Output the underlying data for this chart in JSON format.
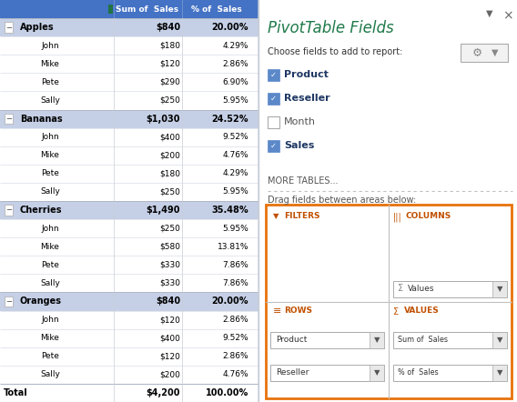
{
  "pivot_header_bg": "#4472C4",
  "pivot_header_text": "#FFFFFF",
  "pivot_header_cols": [
    "Sum of  Sales",
    "% of  Sales"
  ],
  "group_bg": "#C5D0E6",
  "border_color": "#B8BEC8",
  "groups": [
    {
      "name": "Apples",
      "sum": "$840",
      "pct": "20.00%",
      "rows": [
        {
          "name": "John",
          "sum": "$180",
          "pct": "4.29%"
        },
        {
          "name": "Mike",
          "sum": "$120",
          "pct": "2.86%"
        },
        {
          "name": "Pete",
          "sum": "$290",
          "pct": "6.90%"
        },
        {
          "name": "Sally",
          "sum": "$250",
          "pct": "5.95%"
        }
      ]
    },
    {
      "name": "Bananas",
      "sum": "$1,030",
      "pct": "24.52%",
      "rows": [
        {
          "name": "John",
          "sum": "$400",
          "pct": "9.52%"
        },
        {
          "name": "Mike",
          "sum": "$200",
          "pct": "4.76%"
        },
        {
          "name": "Pete",
          "sum": "$180",
          "pct": "4.29%"
        },
        {
          "name": "Sally",
          "sum": "$250",
          "pct": "5.95%"
        }
      ]
    },
    {
      "name": "Cherries",
      "sum": "$1,490",
      "pct": "35.48%",
      "rows": [
        {
          "name": "John",
          "sum": "$250",
          "pct": "5.95%"
        },
        {
          "name": "Mike",
          "sum": "$580",
          "pct": "13.81%"
        },
        {
          "name": "Pete",
          "sum": "$330",
          "pct": "7.86%"
        },
        {
          "name": "Sally",
          "sum": "$330",
          "pct": "7.86%"
        }
      ]
    },
    {
      "name": "Oranges",
      "sum": "$840",
      "pct": "20.00%",
      "rows": [
        {
          "name": "John",
          "sum": "$120",
          "pct": "2.86%"
        },
        {
          "name": "Mike",
          "sum": "$400",
          "pct": "9.52%"
        },
        {
          "name": "Pete",
          "sum": "$120",
          "pct": "2.86%"
        },
        {
          "name": "Sally",
          "sum": "$200",
          "pct": "4.76%"
        }
      ]
    }
  ],
  "total_row": {
    "name": "Total",
    "sum": "$4,200",
    "pct": "100.00%"
  },
  "panel_title": "PivotTable Fields",
  "panel_title_color": "#1F7A4A",
  "panel_subtitle": "Choose fields to add to report:",
  "fields": [
    {
      "name": "Product",
      "checked": true,
      "bold": true
    },
    {
      "name": "Reseller",
      "checked": true,
      "bold": true
    },
    {
      "name": "Month",
      "checked": false,
      "bold": false
    },
    {
      "name": "Sales",
      "checked": true,
      "bold": true
    }
  ],
  "more_tables": "MORE TABLES...",
  "drag_label": "Drag fields between areas below:",
  "filters_label": "FILTERS",
  "columns_label": "COLUMNS",
  "rows_label": "ROWS",
  "values_label": "VALUES",
  "orange_border": "#E8720C",
  "area_header_color": "#C05000",
  "col1_label": "Sum of  Sales",
  "col2_label": "% of  Sales",
  "rows_items": [
    "Product",
    "Reseller"
  ],
  "values_items": [
    "Sum of  Sales",
    "% of  Sales"
  ]
}
